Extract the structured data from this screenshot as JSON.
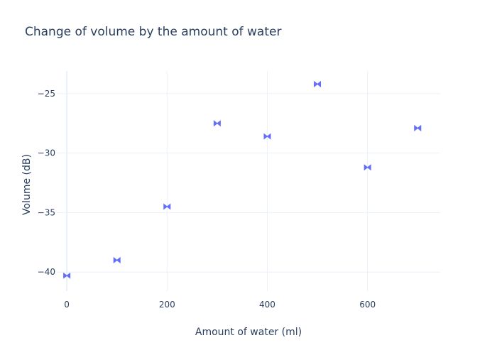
{
  "chart_data": {
    "type": "scatter",
    "title": "Change of volume by the amount of water",
    "xlabel": "Amount of water (ml)",
    "ylabel": "Volume (dB)",
    "xlim": [
      -20,
      745
    ],
    "ylim": [
      -41.6,
      -23.1
    ],
    "xticks": [
      0,
      200,
      400,
      600
    ],
    "yticks": [
      -25,
      -30,
      -35,
      -40
    ],
    "xtick_labels": [
      "0",
      "200",
      "400",
      "600"
    ],
    "ytick_labels": [
      "−25",
      "−30",
      "−35",
      "−40"
    ],
    "grid": true,
    "marker": "bowtie",
    "color": "#636efa",
    "series": [
      {
        "x": [
          0,
          100,
          200,
          300,
          400,
          500,
          600,
          700
        ],
        "y": [
          -40.3,
          -39.0,
          -34.5,
          -27.5,
          -28.6,
          -24.2,
          -31.2,
          -27.9
        ]
      }
    ]
  }
}
